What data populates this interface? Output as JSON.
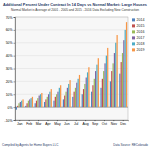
{
  "chart_data": {
    "type": "bar",
    "title": "Additional Percent Under Contract In 14 Days vs Normal Market: Large Houses",
    "subtitle": "Normal Market is Average of 2001 - 2005 and 2015 - 2016 Data Excluding New Construction",
    "footer_left": "Compiled by Agents for Home Buyers LLC",
    "footer_right": "Data Source: REColorado",
    "categories": [
      "Jan",
      "Feb",
      "Mar",
      "Apr",
      "May",
      "Jun",
      "Jul",
      "Aug",
      "Sep",
      "Oct",
      "Nov",
      "Dec"
    ],
    "series": [
      {
        "name": "2014",
        "color": "#4f81bd",
        "values": [
          -2,
          1,
          3,
          4,
          5,
          6,
          8,
          10,
          12,
          15,
          20,
          26
        ]
      },
      {
        "name": "2015",
        "color": "#c0504d",
        "values": [
          1,
          3,
          5,
          6,
          8,
          9,
          12,
          14,
          17,
          22,
          28,
          35
        ]
      },
      {
        "name": "2016",
        "color": "#9bbb59",
        "values": [
          3,
          5,
          7,
          8,
          10,
          12,
          15,
          18,
          22,
          28,
          34,
          42
        ]
      },
      {
        "name": "2017",
        "color": "#8064a2",
        "values": [
          4,
          6,
          9,
          10,
          12,
          15,
          19,
          23,
          28,
          34,
          42,
          52
        ]
      },
      {
        "name": "2018",
        "color": "#4bacc6",
        "values": [
          5,
          7,
          10,
          12,
          15,
          18,
          22,
          27,
          33,
          40,
          50,
          60
        ]
      },
      {
        "name": "2019",
        "color": "#f79646",
        "values": [
          6,
          8,
          11,
          14,
          17,
          21,
          25,
          31,
          38,
          46,
          56,
          66
        ]
      }
    ],
    "ylim": [
      -10,
      70
    ],
    "yticks": [
      {
        "value": -10,
        "label": "-10%"
      },
      {
        "value": 0,
        "label": "0%"
      },
      {
        "value": 10,
        "label": "10%"
      },
      {
        "value": 20,
        "label": "20%"
      },
      {
        "value": 30,
        "label": "30%"
      },
      {
        "value": 40,
        "label": "40%"
      },
      {
        "value": 50,
        "label": "50%"
      },
      {
        "value": 60,
        "label": "60%"
      },
      {
        "value": 70,
        "label": "70%"
      }
    ],
    "grid": true,
    "legend": "right"
  }
}
